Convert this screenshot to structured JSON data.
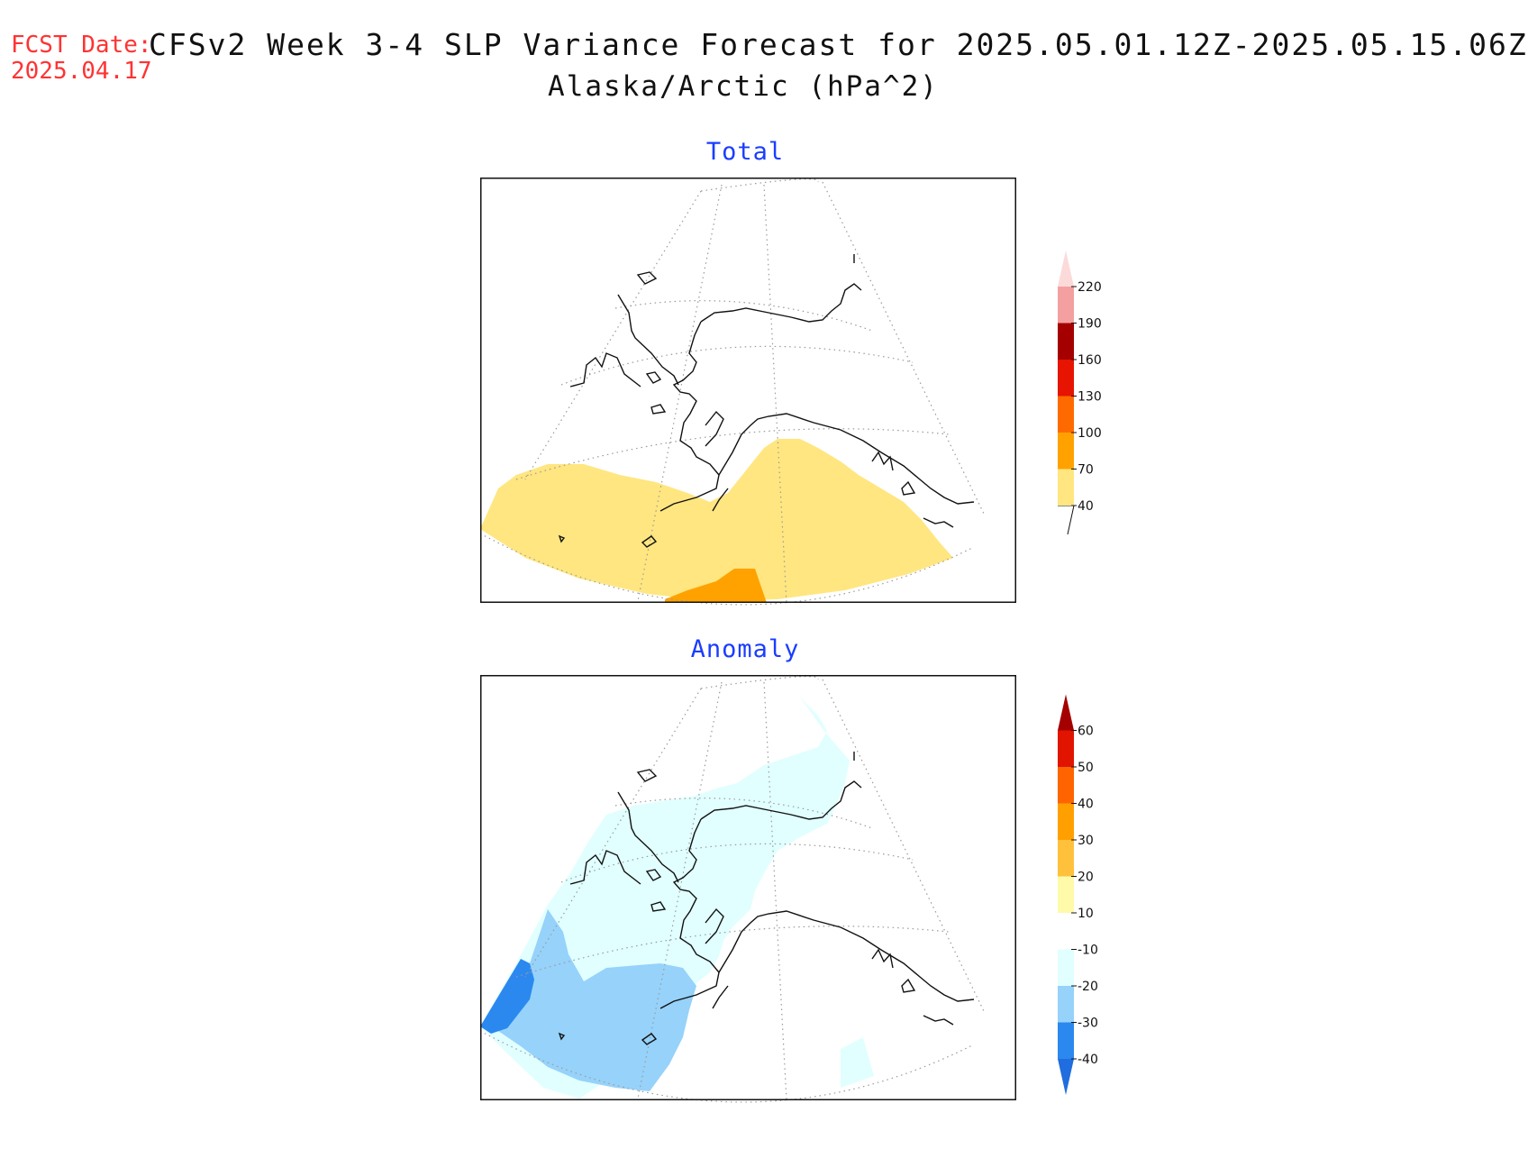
{
  "header": {
    "fcst_label": "FCST Date:",
    "fcst_date": "2025.04.17",
    "title": "CFSv2 Week 3-4 SLP Variance Forecast for 2025.05.01.12Z-2025.05.15.06Z",
    "subtitle": "Alaska/Arctic (hPa^2)"
  },
  "panels": [
    {
      "title": "Total",
      "colorbar": {
        "levels": [
          "40",
          "70",
          "100",
          "130",
          "160",
          "190",
          "220"
        ],
        "colors": [
          "#ffe680",
          "#ffa200",
          "#ff6a00",
          "#e61400",
          "#a50000",
          "#f4a0a0",
          "#fcdada"
        ]
      }
    },
    {
      "title": "Anomaly",
      "colorbar": {
        "levels": [
          "-40",
          "-30",
          "-20",
          "-10",
          "10",
          "20",
          "30",
          "40",
          "50",
          "60"
        ],
        "colors": [
          "#1f6ddf",
          "#2b88ef",
          "#96d2fa",
          "#e1ffff",
          "#ffffff",
          "#fffaaa",
          "#ffc03c",
          "#ffa000",
          "#ff6400",
          "#e11400",
          "#a50000"
        ]
      }
    }
  ],
  "shading_colors": {
    "total_40_70": "#ffe680",
    "total_70_100": "#ffa200",
    "anom_minus10": "#e1ffff",
    "anom_minus30": "#96d2fa",
    "anom_minus40": "#2b88ef"
  }
}
